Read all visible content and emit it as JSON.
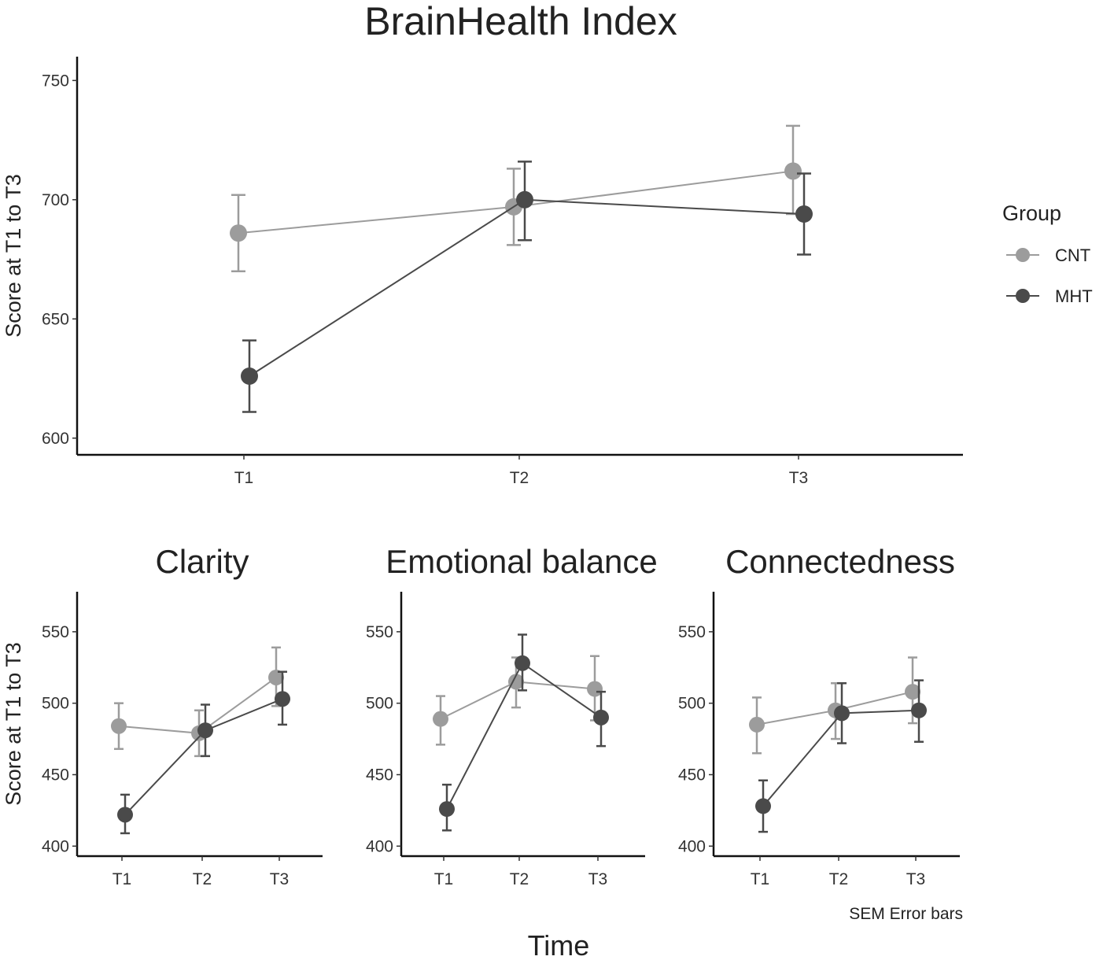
{
  "title": "BrainHealth Index",
  "legend": {
    "title": "Group",
    "entries": [
      {
        "name": "CNT",
        "color": "#9c9c9c"
      },
      {
        "name": "MHT",
        "color": "#4a4a4a"
      }
    ]
  },
  "note": "SEM Error bars",
  "xlabel": "Time",
  "chart_data": [
    {
      "type": "line",
      "title": "BrainHealth Index",
      "categories": [
        "T1",
        "T2",
        "T3"
      ],
      "ylabel": "Score at T1 to T3",
      "ylim": [
        593,
        760
      ],
      "yticks": [
        600,
        650,
        700,
        750
      ],
      "series": [
        {
          "name": "CNT",
          "color": "#9c9c9c",
          "values": [
            686,
            697,
            712
          ],
          "low": [
            670,
            681,
            694
          ],
          "high": [
            702,
            713,
            731
          ]
        },
        {
          "name": "MHT",
          "color": "#4a4a4a",
          "values": [
            626,
            700,
            694
          ],
          "low": [
            611,
            683,
            677
          ],
          "high": [
            641,
            716,
            711
          ]
        }
      ]
    },
    {
      "type": "line",
      "title": "Clarity",
      "categories": [
        "T1",
        "T2",
        "T3"
      ],
      "ylabel": "Score at T1 to T3",
      "ylim": [
        393,
        578
      ],
      "yticks": [
        400,
        450,
        500,
        550
      ],
      "series": [
        {
          "name": "CNT",
          "color": "#9c9c9c",
          "values": [
            484,
            479,
            518
          ],
          "low": [
            468,
            463,
            498
          ],
          "high": [
            500,
            495,
            539
          ]
        },
        {
          "name": "MHT",
          "color": "#4a4a4a",
          "values": [
            422,
            481,
            503
          ],
          "low": [
            409,
            463,
            485
          ],
          "high": [
            436,
            499,
            522
          ]
        }
      ]
    },
    {
      "type": "line",
      "title": "Emotional balance",
      "categories": [
        "T1",
        "T2",
        "T3"
      ],
      "ylabel": "",
      "ylim": [
        393,
        578
      ],
      "yticks": [
        400,
        450,
        500,
        550
      ],
      "series": [
        {
          "name": "CNT",
          "color": "#9c9c9c",
          "values": [
            489,
            515,
            510
          ],
          "low": [
            471,
            497,
            488
          ],
          "high": [
            505,
            532,
            533
          ]
        },
        {
          "name": "MHT",
          "color": "#4a4a4a",
          "values": [
            426,
            528,
            490
          ],
          "low": [
            411,
            509,
            470
          ],
          "high": [
            443,
            548,
            508
          ]
        }
      ]
    },
    {
      "type": "line",
      "title": "Connectedness",
      "categories": [
        "T1",
        "T2",
        "T3"
      ],
      "ylabel": "",
      "ylim": [
        393,
        578
      ],
      "yticks": [
        400,
        450,
        500,
        550
      ],
      "series": [
        {
          "name": "CNT",
          "color": "#9c9c9c",
          "values": [
            485,
            495,
            508
          ],
          "low": [
            465,
            475,
            486
          ],
          "high": [
            504,
            514,
            532
          ]
        },
        {
          "name": "MHT",
          "color": "#4a4a4a",
          "values": [
            428,
            493,
            495
          ],
          "low": [
            410,
            472,
            473
          ],
          "high": [
            446,
            514,
            516
          ]
        }
      ]
    }
  ]
}
